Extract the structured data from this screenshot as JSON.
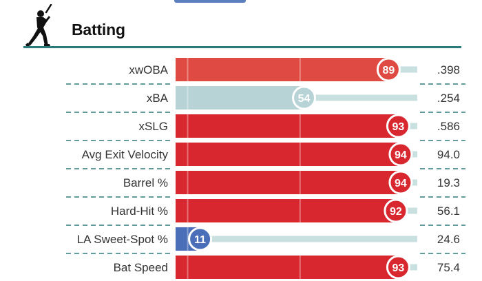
{
  "section": {
    "title": "Batting",
    "icon": "batter-icon"
  },
  "colors": {
    "hot": "#d8272e",
    "warm": "#df4b42",
    "neutral": "#b7d3d5",
    "cold": "#4a6fb8",
    "track": "#c9e0e0",
    "rule": "#2d7a7a",
    "dash": "#2d7a7a"
  },
  "chart_data": {
    "type": "bar",
    "orientation": "horizontal",
    "xlim": [
      0,
      100
    ],
    "categories": [
      "xwOBA",
      "xBA",
      "xSLG",
      "Avg Exit Velocity",
      "Barrel %",
      "Hard-Hit %",
      "LA Sweet-Spot %",
      "Bat Speed"
    ],
    "percentiles": [
      89,
      54,
      93,
      94,
      94,
      92,
      11,
      93
    ],
    "values": [
      ".398",
      ".254",
      ".586",
      "94.0",
      "19.3",
      "56.1",
      "24.6",
      "75.4"
    ],
    "bar_colors": [
      "#df4b42",
      "#b7d3d5",
      "#d8272e",
      "#d8272e",
      "#d8272e",
      "#d8272e",
      "#4a6fb8",
      "#d8272e"
    ]
  }
}
